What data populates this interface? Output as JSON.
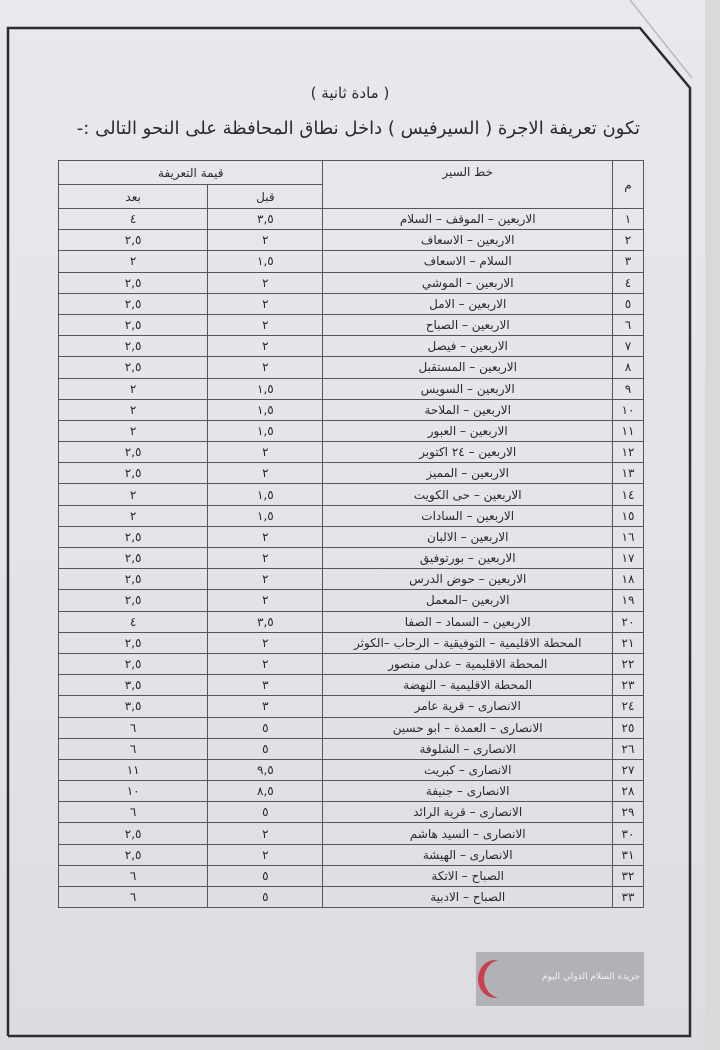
{
  "document": {
    "subtitle": "( مادة ثانية )",
    "title": "تكون تعريفة الاجرة ( السيرفيس ) داخل نطاق المحافظة على النحو التالى :-",
    "watermark_text": "جريدة السلام الدولي اليوم",
    "watermark_color": "#c9414c"
  },
  "table": {
    "headers": {
      "no": "م",
      "route": "خط السير",
      "fare": "قيمة التعريفة",
      "before": "قبل",
      "after": "بعد"
    },
    "rows": [
      {
        "no": "١",
        "route": "الاربعين – الموقف – السلام",
        "before": "٣,٥",
        "after": "٤"
      },
      {
        "no": "٢",
        "route": "الاربعين – الاسعاف",
        "before": "٢",
        "after": "٢,٥"
      },
      {
        "no": "٣",
        "route": "السلام – الاسعاف",
        "before": "١,٥",
        "after": "٢"
      },
      {
        "no": "٤",
        "route": "الاربعين – الموشي",
        "before": "٢",
        "after": "٢,٥"
      },
      {
        "no": "٥",
        "route": "الاربعين – الامل",
        "before": "٢",
        "after": "٢,٥"
      },
      {
        "no": "٦",
        "route": "الاربعين – الصباح",
        "before": "٢",
        "after": "٢,٥"
      },
      {
        "no": "٧",
        "route": "الاربعين – فيصل",
        "before": "٢",
        "after": "٢,٥"
      },
      {
        "no": "٨",
        "route": "الاربعين – المستقبل",
        "before": "٢",
        "after": "٢,٥"
      },
      {
        "no": "٩",
        "route": "الاربعين – السويس",
        "before": "١,٥",
        "after": "٢"
      },
      {
        "no": "١٠",
        "route": "الاربعين – الملاحة",
        "before": "١,٥",
        "after": "٢"
      },
      {
        "no": "١١",
        "route": "الاربعين – العبور",
        "before": "١,٥",
        "after": "٢"
      },
      {
        "no": "١٢",
        "route": "الاربعين – ٢٤ اكتوبر",
        "before": "٢",
        "after": "٢,٥"
      },
      {
        "no": "١٣",
        "route": "الاربعين – المميز",
        "before": "٢",
        "after": "٢,٥"
      },
      {
        "no": "١٤",
        "route": "الاربعين – حى الكويت",
        "before": "١,٥",
        "after": "٢"
      },
      {
        "no": "١٥",
        "route": "الاربعين – السادات",
        "before": "١,٥",
        "after": "٢"
      },
      {
        "no": "١٦",
        "route": "الاربعين – الالبان",
        "before": "٢",
        "after": "٢,٥"
      },
      {
        "no": "١٧",
        "route": "الاربعين – بورتوفيق",
        "before": "٢",
        "after": "٢,٥"
      },
      {
        "no": "١٨",
        "route": "الاربعين – حوض الدرس",
        "before": "٢",
        "after": "٢,٥"
      },
      {
        "no": "١٩",
        "route": "الاربعين –المعمل",
        "before": "٢",
        "after": "٢,٥"
      },
      {
        "no": "٢٠",
        "route": "الاربعين – السماد – الصفا",
        "before": "٣,٥",
        "after": "٤"
      },
      {
        "no": "٢١",
        "route": "المحطة الاقليمية – التوفيقية – الرحاب –الكوثر",
        "before": "٢",
        "after": "٢,٥"
      },
      {
        "no": "٢٢",
        "route": "المحطة الاقليمية – عدلى منصور",
        "before": "٢",
        "after": "٢,٥"
      },
      {
        "no": "٢٣",
        "route": "المحطة الاقليمية – النهضة",
        "before": "٣",
        "after": "٣,٥"
      },
      {
        "no": "٢٤",
        "route": "الانصارى – قرية عامر",
        "before": "٣",
        "after": "٣,٥"
      },
      {
        "no": "٢٥",
        "route": "الانصارى – العمدة – ابو حسين",
        "before": "٥",
        "after": "٦"
      },
      {
        "no": "٢٦",
        "route": "الانصارى – الشلوفة",
        "before": "٥",
        "after": "٦"
      },
      {
        "no": "٢٧",
        "route": "الانصارى – كبريت",
        "before": "٩,٥",
        "after": "١١"
      },
      {
        "no": "٢٨",
        "route": "الانصارى – جنيفة",
        "before": "٨,٥",
        "after": "١٠"
      },
      {
        "no": "٢٩",
        "route": "الانصارى – قرية الرائد",
        "before": "٥",
        "after": "٦"
      },
      {
        "no": "٣٠",
        "route": "الانصارى – السيد هاشم",
        "before": "٢",
        "after": "٢,٥"
      },
      {
        "no": "٣١",
        "route": "الانصارى – الهيشة",
        "before": "٢",
        "after": "٢,٥"
      },
      {
        "no": "٣٢",
        "route": "الصباح – الاتكة",
        "before": "٥",
        "after": "٦"
      },
      {
        "no": "٣٣",
        "route": "الصباح – الادبية",
        "before": "٥",
        "after": "٦"
      }
    ]
  }
}
